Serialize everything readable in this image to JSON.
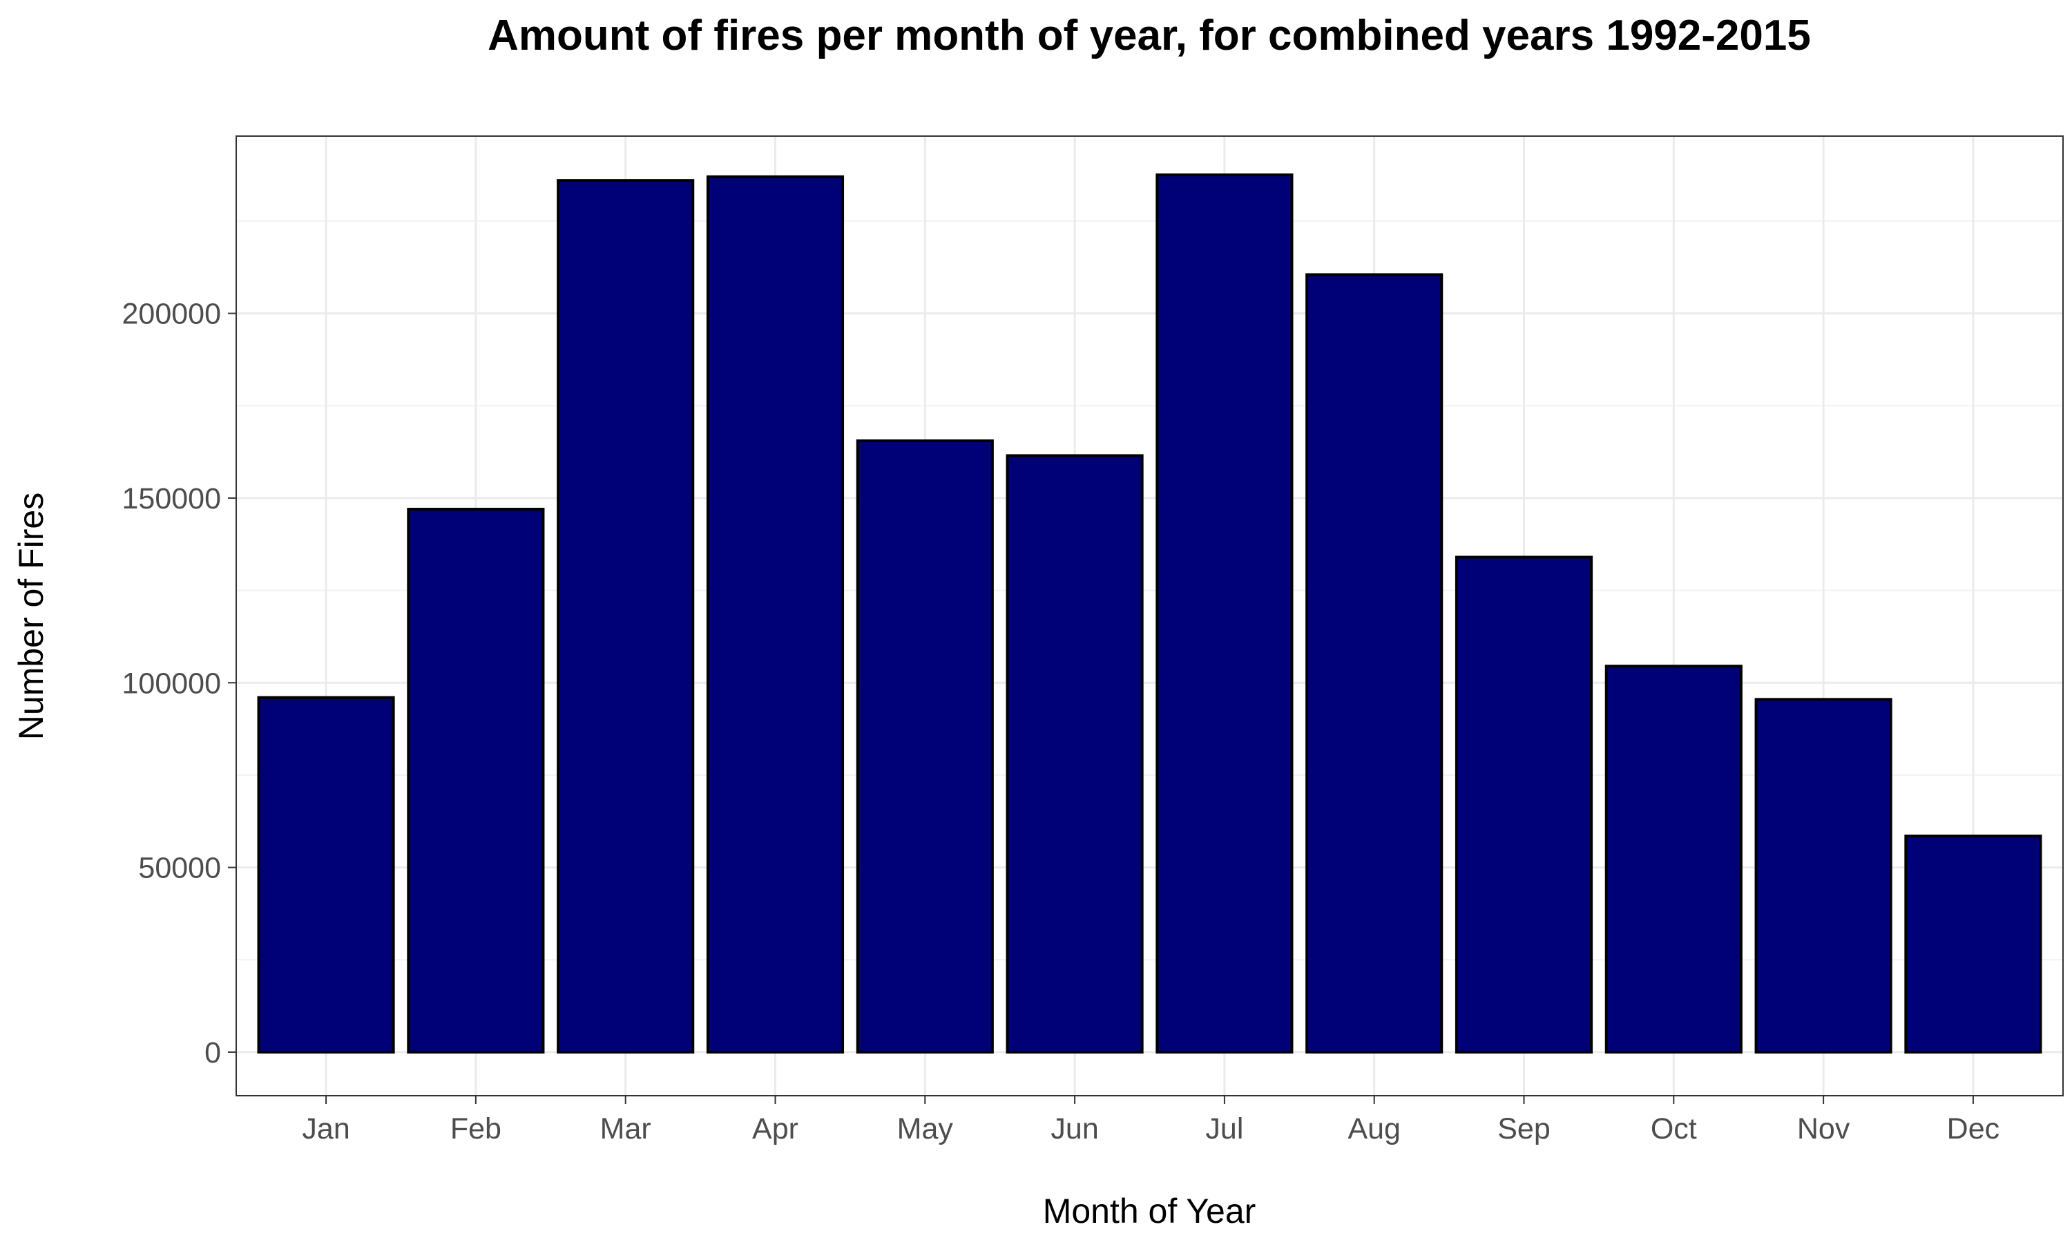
{
  "chart_data": {
    "type": "bar",
    "title": "Amount of fires per month of year, for combined years 1992-2015",
    "xlabel": "Month of Year",
    "ylabel": "Number of Fires",
    "categories": [
      "Jan",
      "Feb",
      "Mar",
      "Apr",
      "May",
      "Jun",
      "Jul",
      "Aug",
      "Sep",
      "Oct",
      "Nov",
      "Dec"
    ],
    "values": [
      96000,
      147000,
      236000,
      237000,
      165500,
      161500,
      237500,
      210500,
      134000,
      104500,
      95500,
      58500
    ],
    "ylim": [
      -11800,
      248000
    ],
    "yticks": [
      0,
      50000,
      100000,
      150000,
      200000
    ],
    "ytick_labels": [
      "0",
      "50000",
      "100000",
      "150000",
      "200000"
    ],
    "grid": true,
    "legend": "none",
    "colors": {
      "bar_fill": "#000077",
      "bar_stroke": "#000000",
      "grid_major": "#ebebeb",
      "grid_minor": "#f2f2f2",
      "panel_border": "#333333",
      "tick_label": "#4d4d4d"
    }
  }
}
